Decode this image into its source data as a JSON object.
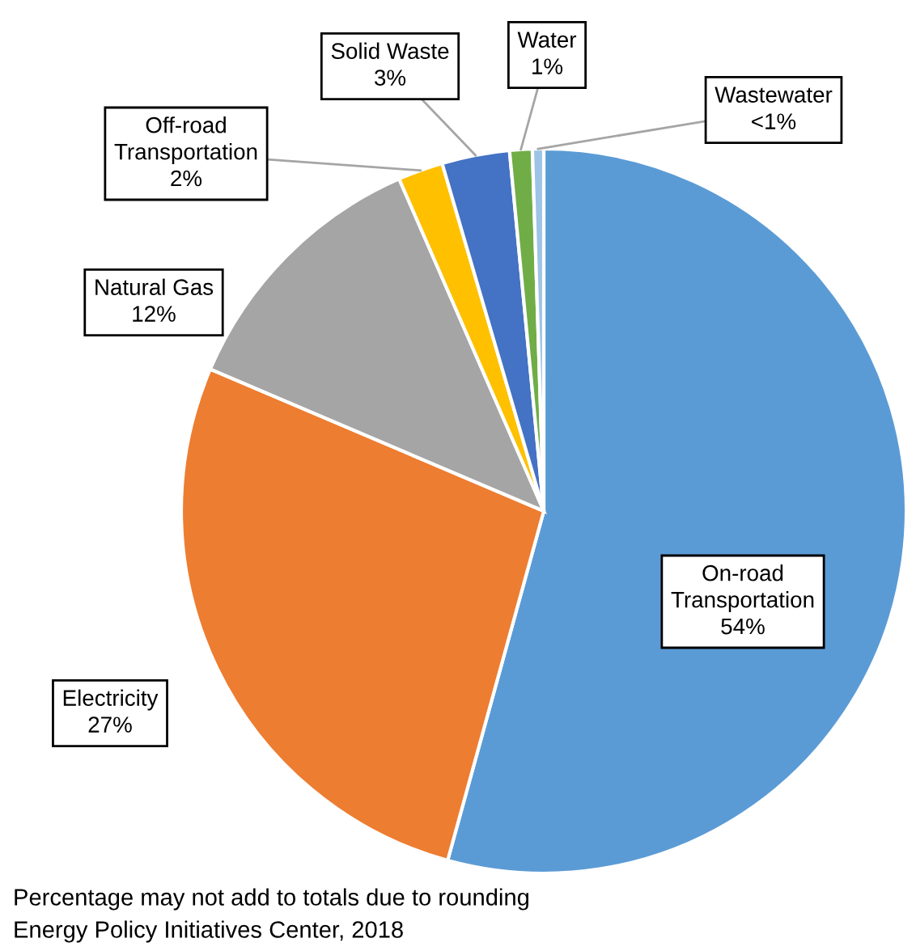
{
  "chart_data": {
    "type": "pie",
    "categories": [
      "On-road Transportation",
      "Electricity",
      "Natural Gas",
      "Off-road Transportation",
      "Solid Waste",
      "Water",
      "Wastewater"
    ],
    "values": [
      54,
      27,
      12,
      2,
      3,
      1,
      0.5
    ],
    "value_labels": [
      "54%",
      "27%",
      "12%",
      "2%",
      "3%",
      "1%",
      "<1%"
    ],
    "colors": [
      "#5b9bd5",
      "#ed7d31",
      "#a5a5a5",
      "#ffc000",
      "#4472c4",
      "#70ad47",
      "#9dc3e6"
    ],
    "legend": false,
    "annotations": [
      "Percentage may not add to totals due to rounding",
      "Energy Policy Initiatives Center, 2018"
    ]
  }
}
